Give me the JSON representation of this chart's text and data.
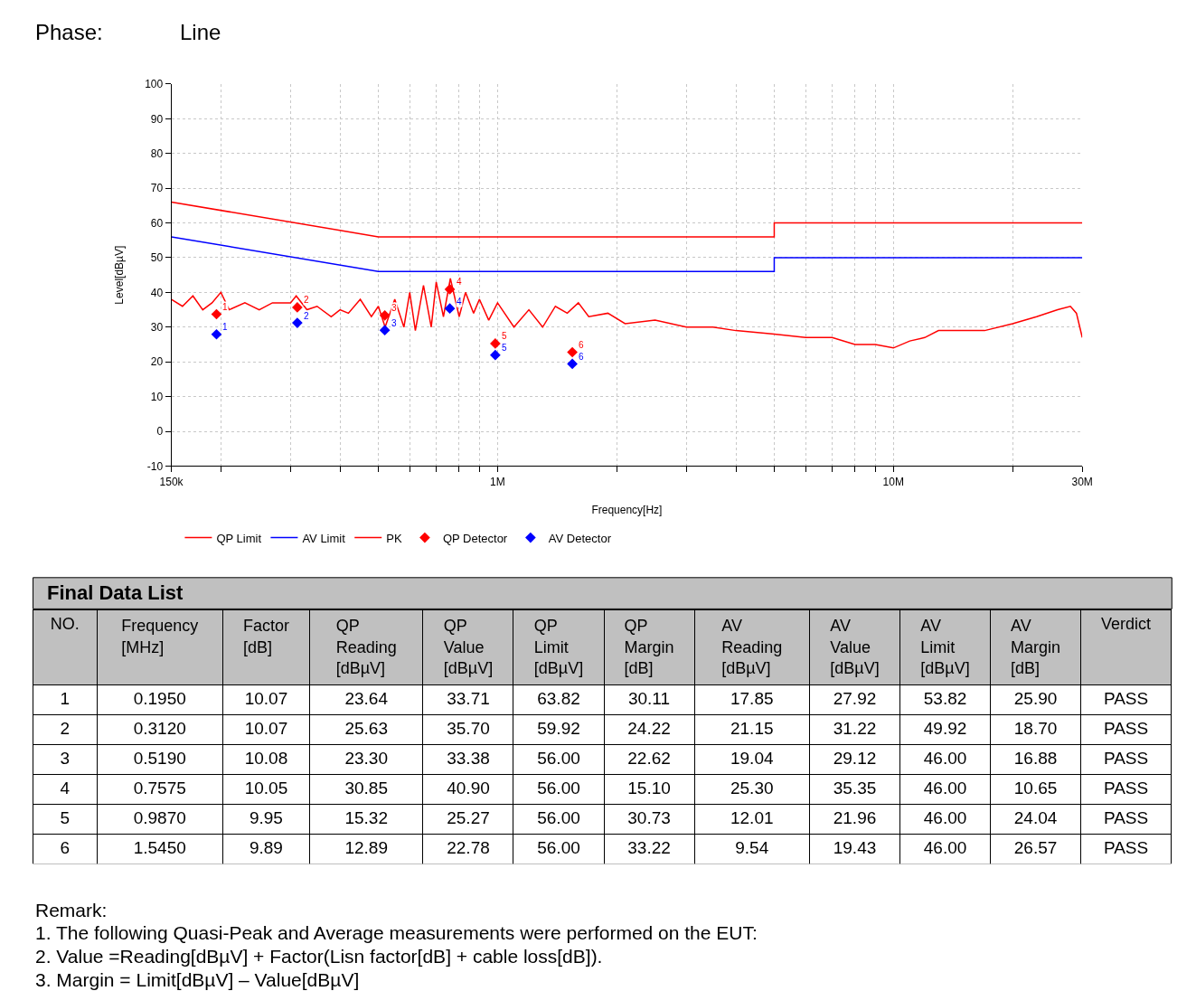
{
  "chart_data": [
    {
      "type": "line",
      "xlabel": "Frequency[Hz]",
      "ylabel": "Level[dBµV]",
      "log": "x",
      "grid": true,
      "legend": "bottom",
      "xlim": [
        150000,
        30000000
      ],
      "xticks": [
        {
          "value": 150000,
          "label": "150k"
        },
        {
          "value": 200000,
          "label": null
        },
        {
          "value": 300000,
          "label": null
        },
        {
          "value": 400000,
          "label": null
        },
        {
          "value": 500000,
          "label": null
        },
        {
          "value": 600000,
          "label": null
        },
        {
          "value": 700000,
          "label": null
        },
        {
          "value": 800000,
          "label": null
        },
        {
          "value": 900000,
          "label": null
        },
        {
          "value": 1000000,
          "label": "1M"
        },
        {
          "value": 2000000,
          "label": null
        },
        {
          "value": 3000000,
          "label": null
        },
        {
          "value": 4000000,
          "label": null
        },
        {
          "value": 5000000,
          "label": null
        },
        {
          "value": 6000000,
          "label": null
        },
        {
          "value": 7000000,
          "label": null
        },
        {
          "value": 8000000,
          "label": null
        },
        {
          "value": 9000000,
          "label": null
        },
        {
          "value": 10000000,
          "label": "10M"
        },
        {
          "value": 20000000,
          "label": null
        },
        {
          "value": 30000000,
          "label": "30M"
        }
      ],
      "ylim": [
        -10,
        100
      ],
      "yticks": [
        -10,
        0,
        10,
        20,
        30,
        40,
        50,
        60,
        70,
        80,
        90,
        100
      ],
      "series": [
        {
          "name": "QP Limit",
          "type": "line",
          "color": "#ff0000",
          "x": [
            150000,
            500000,
            5000000,
            5000000,
            30000000
          ],
          "values": [
            66,
            56,
            56,
            60,
            60
          ]
        },
        {
          "name": "AV Limit",
          "type": "line",
          "color": "#0000ff",
          "x": [
            150000,
            500000,
            5000000,
            5000000,
            30000000
          ],
          "values": [
            56,
            46,
            46,
            50,
            50
          ]
        },
        {
          "name": "PK",
          "type": "line",
          "color": "#ff0000",
          "x": [
            150000,
            160000,
            170000,
            180000,
            190000,
            200000,
            210000,
            230000,
            250000,
            270000,
            300000,
            310000,
            330000,
            350000,
            380000,
            400000,
            420000,
            450000,
            480000,
            500000,
            520000,
            550000,
            580000,
            600000,
            620000,
            650000,
            680000,
            700000,
            730000,
            760000,
            800000,
            830000,
            870000,
            900000,
            950000,
            1000000,
            1100000,
            1200000,
            1300000,
            1400000,
            1500000,
            1600000,
            1700000,
            1900000,
            2100000,
            2500000,
            3000000,
            3500000,
            4000000,
            5000000,
            6000000,
            7000000,
            8000000,
            9000000,
            10000000,
            11000000,
            12000000,
            13000000,
            15000000,
            17000000,
            20000000,
            23000000,
            26000000,
            28000000,
            29000000,
            30000000
          ],
          "values": [
            38,
            36,
            39,
            35,
            37,
            40,
            35,
            37,
            35,
            37,
            37,
            39,
            35,
            36,
            33,
            35,
            34,
            38,
            33,
            36,
            30,
            38,
            30,
            40,
            29,
            42,
            30,
            43,
            33,
            44,
            33,
            40,
            34,
            38,
            32,
            37,
            30,
            35,
            30,
            36,
            34,
            37,
            33,
            34,
            31,
            32,
            30,
            30,
            29,
            28,
            27,
            27,
            25,
            25,
            24,
            26,
            27,
            29,
            29,
            29,
            31,
            33,
            35,
            36,
            34,
            27
          ]
        },
        {
          "name": "QP Detector",
          "type": "scatter",
          "marker": "diamond",
          "color": "#ff0000",
          "x": [
            195000,
            312000,
            519000,
            757500,
            987000,
            1545000
          ],
          "values": [
            33.71,
            35.7,
            33.38,
            40.9,
            25.27,
            22.78
          ]
        },
        {
          "name": "AV Detector",
          "type": "scatter",
          "marker": "diamond",
          "color": "#0000ff",
          "x": [
            195000,
            312000,
            519000,
            757500,
            987000,
            1545000
          ],
          "values": [
            27.92,
            31.22,
            29.12,
            35.35,
            21.96,
            19.43
          ]
        }
      ],
      "annotations": [
        "Phase:",
        "Line",
        {
          "text": "1",
          "x": 195000,
          "y": 33.71
        },
        {
          "text": "2",
          "x": 312000,
          "y": 35.7
        },
        {
          "text": "3",
          "x": 519000,
          "y": 33.38
        },
        {
          "text": "4",
          "x": 757500,
          "y": 40.9
        },
        {
          "text": "5",
          "x": 987000,
          "y": 25.27
        },
        {
          "text": "6",
          "x": 1545000,
          "y": 22.78
        },
        {
          "text": "1",
          "x": 195000,
          "y": 27.92
        },
        {
          "text": "2",
          "x": 312000,
          "y": 31.22
        },
        {
          "text": "3",
          "x": 519000,
          "y": 29.12
        },
        {
          "text": "4",
          "x": 757500,
          "y": 35.35
        },
        {
          "text": "5",
          "x": 987000,
          "y": 21.96
        },
        {
          "text": "6",
          "x": 1545000,
          "y": 19.43
        }
      ]
    },
    {
      "type": "heatmap",
      "title": "Final Data List",
      "ylabel": "NO.",
      "y_categories": [
        "1",
        "2",
        "3",
        "4",
        "5",
        "6"
      ],
      "categories": [
        "Frequency [MHz]",
        "Factor [dB]",
        "QP Reading [dBµV]",
        "QP Value [dBµV]",
        "QP Limit [dBµV]",
        "QP Margin [dB]",
        "AV Reading [dBµV]",
        "AV Value [dBµV]",
        "AV Limit [dBµV]",
        "AV Margin [dB]",
        "Verdict"
      ],
      "cells": [
        [
          0.195,
          10.07,
          23.64,
          33.71,
          63.82,
          30.11,
          17.85,
          27.92,
          53.82,
          25.9,
          null
        ],
        [
          0.312,
          10.07,
          25.63,
          35.7,
          59.92,
          24.22,
          21.15,
          31.22,
          49.92,
          18.7,
          null
        ],
        [
          0.519,
          10.08,
          23.3,
          33.38,
          56.0,
          22.62,
          19.04,
          29.12,
          46.0,
          16.88,
          null
        ],
        [
          0.7575,
          10.05,
          30.85,
          40.9,
          56.0,
          15.1,
          25.3,
          35.35,
          46.0,
          10.65,
          null
        ],
        [
          0.987,
          9.95,
          15.32,
          25.27,
          56.0,
          30.73,
          12.01,
          21.96,
          46.0,
          24.04,
          null
        ],
        [
          1.545,
          9.89,
          12.89,
          22.78,
          56.0,
          33.22,
          9.54,
          19.43,
          46.0,
          26.57,
          null
        ]
      ],
      "cell_labels": [
        [
          "0.1950",
          "10.07",
          "23.64",
          "33.71",
          "63.82",
          "30.11",
          "17.85",
          "27.92",
          "53.82",
          "25.90",
          "PASS"
        ],
        [
          "0.3120",
          "10.07",
          "25.63",
          "35.70",
          "59.92",
          "24.22",
          "21.15",
          "31.22",
          "49.92",
          "18.70",
          "PASS"
        ],
        [
          "0.5190",
          "10.08",
          "23.30",
          "33.38",
          "56.00",
          "22.62",
          "19.04",
          "29.12",
          "46.00",
          "16.88",
          "PASS"
        ],
        [
          "0.7575",
          "10.05",
          "30.85",
          "40.90",
          "56.00",
          "15.10",
          "25.30",
          "35.35",
          "46.00",
          "10.65",
          "PASS"
        ],
        [
          "0.9870",
          "9.95",
          "15.32",
          "25.27",
          "56.00",
          "30.73",
          "12.01",
          "21.96",
          "46.00",
          "24.04",
          "PASS"
        ],
        [
          "1.5450",
          "9.89",
          "12.89",
          "22.78",
          "56.00",
          "33.22",
          "9.54",
          "19.43",
          "46.00",
          "26.57",
          "PASS"
        ]
      ],
      "annotations": [
        "Remark:",
        "1. The following Quasi-Peak and Average measurements were performed on the EUT:",
        "2. Value =Reading[dBµV] + Factor(Lisn factor[dB] + cable loss[dB]).",
        "3. Margin = Limit[dBµV] – Value[dBµV]"
      ]
    }
  ]
}
